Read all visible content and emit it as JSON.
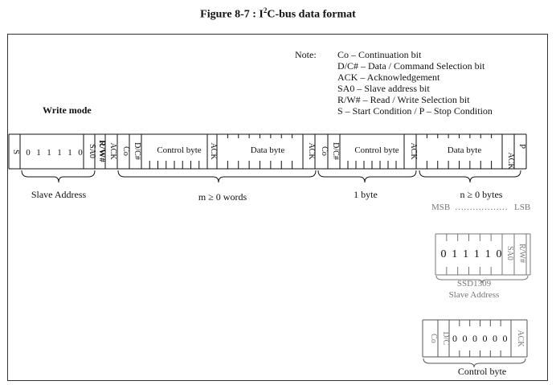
{
  "figure": {
    "title_prefix": "Figure 8-7 : I",
    "title_sup": "2",
    "title_suffix": "C-bus data format"
  },
  "note": {
    "heading": "Note:",
    "items": [
      "Co – Continuation bit",
      "D/C# – Data / Command Selection bit",
      "ACK – Acknowledgement",
      "SA0 – Slave address bit",
      "R/W# – Read / Write Selection bit",
      "S – Start Condition / P – Stop Condition"
    ]
  },
  "write_mode": "Write mode",
  "frame": {
    "start": "S",
    "slave_bits": [
      "0",
      "1",
      "1",
      "1",
      "1",
      "0"
    ],
    "sa0": "SA0",
    "rw": "R/W#",
    "ack": "ACK",
    "co": "Co",
    "dc": "D/C#",
    "control_byte": "Control byte",
    "data_byte": "Data byte",
    "stop": "P"
  },
  "groups": {
    "slave_address": "Slave Address",
    "m_words": "m ≥ 0 words",
    "one_byte": "1 byte",
    "n_bytes": "n ≥ 0 bytes",
    "msb": "MSB",
    "dots": "………………",
    "lsb": "LSB"
  },
  "slave_detail": {
    "bits": [
      "0",
      "1",
      "1",
      "1",
      "1",
      "0"
    ],
    "sa0": "SA0",
    "rw": "R/W#",
    "chip": "SSD1309",
    "label": "Slave Address"
  },
  "control_detail": {
    "co": "Co",
    "dc": "D/C",
    "bits": [
      "0",
      "0",
      "0",
      "0",
      "0",
      "0"
    ],
    "ack": "ACK",
    "label": "Control byte"
  }
}
